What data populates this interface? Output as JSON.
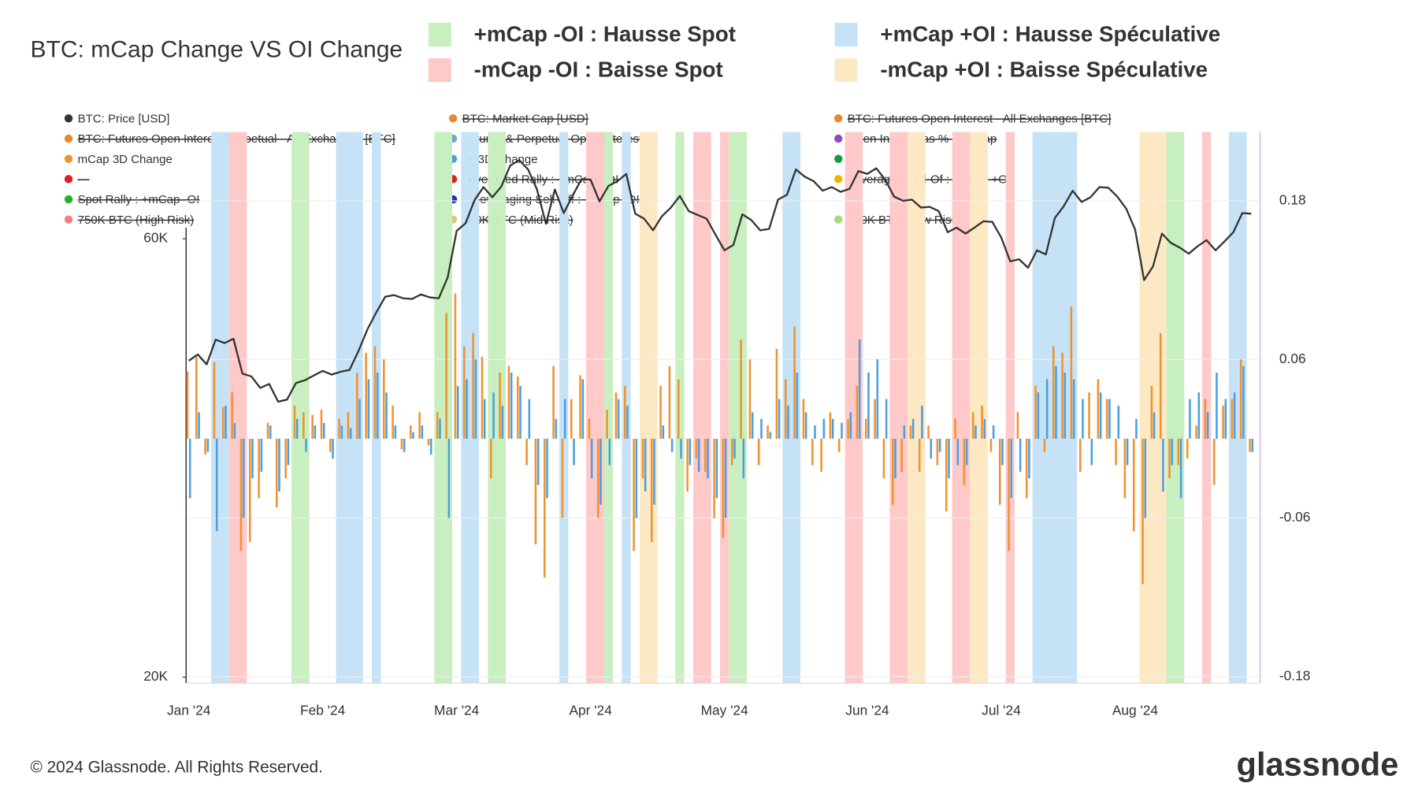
{
  "chart_data": {
    "type": "bar-line",
    "title": "BTC: mCap Change VS OI Change",
    "regime_legend": [
      {
        "label": "+mCap -OI : Hausse Spot",
        "color": "#c8efc0",
        "text_color": "#4cc52a"
      },
      {
        "label": "-mCap -OI : Baisse Spot",
        "color": "#ffc9c9",
        "text_color": "#f06a6a"
      },
      {
        "label": "+mCap +OI : Hausse Spéculative",
        "color": "#c6e2f7",
        "text_color": "#4aa3e8"
      },
      {
        "label": "-mCap +OI : Baisse Spéculative",
        "color": "#fde8c4",
        "text_color": "#f3b841"
      }
    ],
    "inactive_legend": [
      {
        "name": "BTC: Market Cap [USD]",
        "color": "#e8892c"
      },
      {
        "name": "BTC: Futures Open Interest - All Exchanges [BTC]",
        "color": "#e8892c"
      },
      {
        "name": "BTC: Futures Open Interest Perpetual - All Exchanges [BTC]",
        "color": "#e8892c"
      },
      {
        "name": "Futures & Perpetual Open Interest",
        "color": "#6fa8c8"
      },
      {
        "name": "Open Interest as % of mCap",
        "color": "#8e4cc0"
      },
      {
        "name": "---",
        "color": "#1a9a3a"
      },
      {
        "name": "---",
        "color": "#e02020"
      },
      {
        "name": "Leveraged Rally : +mCap +OI",
        "color": "#e02020"
      },
      {
        "name": "Leveraged Sell-Of : -mCap +OI",
        "color": "#f0b400"
      },
      {
        "name": "Spot Rally : +mCap -OI",
        "color": "#2ab02a"
      },
      {
        "name": "Deleveraging Sell-Off : -mCap -OI",
        "color": "#2030c0"
      },
      {
        "name": "750K BTC (High Risk)",
        "color": "#f08080"
      },
      {
        "name": "700K BTC (Mid Risk)",
        "color": "#d8cc80"
      },
      {
        "name": "650K BTC (Low Risk)",
        "color": "#a8d880"
      }
    ],
    "categories": [
      "Jan '24",
      null,
      null,
      null,
      null,
      null,
      null,
      null,
      null,
      null,
      null,
      null,
      null,
      null,
      null,
      "Feb '24",
      null,
      null,
      null,
      null,
      null,
      null,
      null,
      null,
      null,
      null,
      null,
      null,
      null,
      null,
      "Mar '24",
      null,
      null,
      null,
      null,
      null,
      null,
      null,
      null,
      null,
      null,
      null,
      null,
      null,
      null,
      "Apr '24",
      null,
      null,
      null,
      null,
      null,
      null,
      null,
      null,
      null,
      null,
      null,
      null,
      null,
      null,
      "May '24",
      null,
      null,
      null,
      null,
      null,
      null,
      null,
      null,
      null,
      null,
      null,
      null,
      null,
      null,
      null,
      "Jun '24",
      null,
      null,
      null,
      null,
      null,
      null,
      null,
      null,
      null,
      null,
      null,
      null,
      null,
      null,
      "Jul '24",
      null,
      null,
      null,
      null,
      null,
      null,
      null,
      null,
      null,
      null,
      null,
      null,
      null,
      null,
      "Aug '24",
      null,
      null,
      null,
      null,
      null,
      null,
      null,
      null,
      null,
      null,
      null,
      null,
      null
    ],
    "regime": [
      null,
      null,
      null,
      2,
      2,
      1,
      1,
      null,
      null,
      null,
      null,
      null,
      0,
      0,
      null,
      null,
      null,
      2,
      2,
      2,
      null,
      2,
      null,
      null,
      null,
      null,
      null,
      null,
      0,
      0,
      null,
      2,
      2,
      null,
      0,
      0,
      null,
      null,
      null,
      null,
      null,
      null,
      2,
      null,
      null,
      1,
      1,
      0,
      null,
      2,
      null,
      3,
      3,
      null,
      null,
      0,
      null,
      1,
      1,
      null,
      1,
      0,
      0,
      null,
      null,
      null,
      null,
      2,
      2,
      null,
      null,
      null,
      null,
      null,
      1,
      1,
      null,
      null,
      null,
      1,
      1,
      3,
      3,
      null,
      null,
      null,
      1,
      1,
      3,
      3,
      null,
      null,
      1,
      null,
      null,
      2,
      2,
      2,
      2,
      2,
      null,
      null,
      null,
      null,
      null,
      null,
      null,
      3,
      3,
      3,
      0,
      0,
      null,
      null,
      1,
      null,
      null,
      2,
      2,
      null
    ],
    "series": [
      {
        "name": "BTC: Price [USD]",
        "color": "#333333",
        "axis": "y",
        "values": [
          44200,
          44900,
          43800,
          46600,
          46200,
          46700,
          42800,
          42500,
          41300,
          41700,
          39900,
          40100,
          41800,
          42100,
          42600,
          43100,
          42700,
          43000,
          43200,
          45300,
          47800,
          49900,
          51900,
          52100,
          51700,
          51600,
          52200,
          51800,
          51700,
          54500,
          61200,
          62400,
          66100,
          68300,
          66600,
          68400,
          72100,
          73100,
          71400,
          67900,
          62300,
          67900,
          64000,
          66900,
          69700,
          69600,
          65900,
          68500,
          69300,
          70600,
          63900,
          63100,
          61300,
          63500,
          64900,
          66800,
          64300,
          63700,
          63100,
          60600,
          58300,
          59100,
          63800,
          62900,
          61300,
          61500,
          66200,
          67000,
          71400,
          70100,
          69300,
          67700,
          68300,
          67500,
          68000,
          71100,
          70600,
          71600,
          69600,
          66700,
          66000,
          66200,
          64900,
          65000,
          64300,
          61000,
          61700,
          60800,
          61700,
          62700,
          62600,
          60200,
          56700,
          57000,
          55800,
          58300,
          57700,
          63200,
          65100,
          67700,
          65800,
          66600,
          68300,
          68200,
          66700,
          64700,
          61400,
          54100,
          56000,
          60800,
          59400,
          58700,
          57800,
          58900,
          59800,
          58300,
          59600,
          61000,
          64000,
          63900
        ]
      },
      {
        "name": "mCap 3D Change",
        "color": "#f0922e",
        "axis": "y2",
        "values": [
          0.051,
          0.062,
          -0.012,
          0.058,
          0.024,
          0.035,
          -0.085,
          -0.078,
          -0.045,
          0.012,
          -0.052,
          -0.03,
          0.025,
          0.02,
          0.018,
          0.022,
          -0.01,
          0.015,
          0.02,
          0.05,
          0.065,
          0.07,
          0.06,
          0.025,
          -0.008,
          0.01,
          0.02,
          -0.005,
          0.02,
          0.095,
          0.11,
          0.07,
          0.08,
          0.062,
          -0.03,
          0.05,
          0.055,
          0.047,
          -0.02,
          -0.08,
          -0.105,
          0.055,
          -0.06,
          0.03,
          0.048,
          0.015,
          -0.06,
          0.022,
          0.035,
          0.04,
          -0.085,
          -0.03,
          -0.078,
          0.04,
          0.055,
          0.045,
          -0.04,
          -0.015,
          -0.025,
          -0.06,
          -0.075,
          -0.02,
          0.075,
          0.06,
          -0.02,
          0.01,
          0.068,
          0.045,
          0.085,
          0.03,
          -0.02,
          -0.025,
          0.02,
          -0.01,
          0.015,
          0.04,
          0.015,
          0.03,
          -0.03,
          -0.05,
          -0.025,
          0.01,
          -0.025,
          0.01,
          -0.02,
          -0.055,
          0.015,
          -0.035,
          0.02,
          0.025,
          -0.01,
          -0.05,
          -0.085,
          0.02,
          -0.045,
          0.04,
          -0.01,
          0.07,
          0.065,
          0.1,
          -0.025,
          0.035,
          0.045,
          0.03,
          -0.02,
          -0.045,
          -0.07,
          -0.11,
          0.04,
          0.08,
          -0.03,
          -0.02,
          -0.015,
          0.01,
          0.03,
          -0.035,
          0.025,
          0.03,
          0.06,
          -0.01
        ]
      },
      {
        "name": "OI 3D Change",
        "color": "#4a9fe0",
        "axis": "y2",
        "values": [
          -0.045,
          0.02,
          -0.01,
          -0.07,
          0.025,
          0.012,
          -0.06,
          -0.03,
          -0.025,
          0.01,
          -0.04,
          -0.02,
          0.015,
          -0.01,
          0.01,
          0.012,
          -0.015,
          0.01,
          0.008,
          0.03,
          0.045,
          0.05,
          0.035,
          0.01,
          -0.01,
          0.005,
          0.01,
          -0.012,
          0.015,
          -0.06,
          0.04,
          0.045,
          0.06,
          0.03,
          0.035,
          0.025,
          0.05,
          0.04,
          0.03,
          -0.035,
          -0.045,
          0.015,
          0.03,
          -0.02,
          0.045,
          -0.03,
          -0.05,
          -0.02,
          0.03,
          0.025,
          -0.06,
          -0.04,
          -0.05,
          0.01,
          -0.01,
          -0.015,
          -0.02,
          -0.025,
          -0.03,
          -0.045,
          -0.06,
          -0.015,
          -0.03,
          0.02,
          0.015,
          0.005,
          0.03,
          0.025,
          0.05,
          0.02,
          0.01,
          0.015,
          0.015,
          0.012,
          0.02,
          0.075,
          0.05,
          0.06,
          0.03,
          -0.03,
          0.01,
          0.015,
          0.025,
          -0.015,
          -0.01,
          -0.03,
          -0.02,
          -0.02,
          0.01,
          0.015,
          0.01,
          -0.02,
          -0.045,
          -0.025,
          -0.03,
          0.035,
          0.045,
          0.055,
          0.05,
          0.045,
          0.03,
          -0.02,
          0.035,
          0.03,
          0.025,
          -0.02,
          0.015,
          -0.06,
          0.02,
          -0.04,
          -0.02,
          -0.045,
          0.03,
          0.035,
          0.02,
          0.05,
          0.03,
          0.035,
          0.055,
          -0.01
        ]
      }
    ],
    "ylim": [
      19700,
      78400
    ],
    "log_scale": true,
    "yticks": [
      {
        "value": 20000,
        "label": "20K"
      },
      {
        "value": 60000,
        "label": "60K"
      }
    ],
    "y2lim": [
      -0.185,
      0.232
    ],
    "y2ticks": [
      0.18,
      0.06,
      -0.06,
      -0.18
    ],
    "grid": true,
    "copyright": "© 2024 Glassnode. All Rights Reserved.",
    "brand": "glassnode"
  }
}
